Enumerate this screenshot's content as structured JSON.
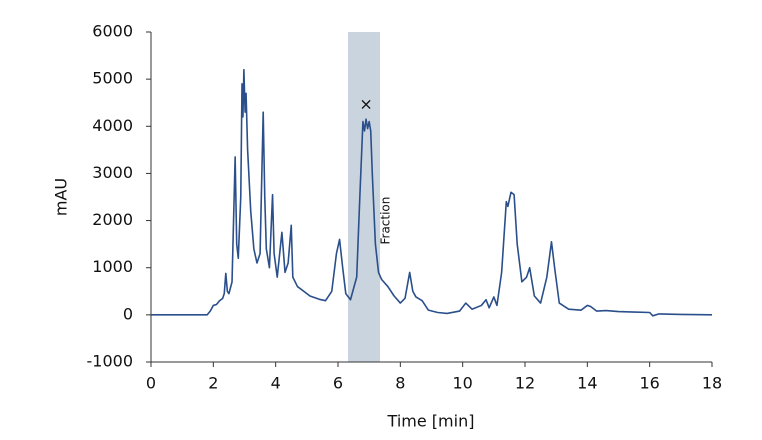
{
  "chart_data": {
    "type": "line",
    "xlabel": "Time [min]",
    "ylabel": "mAU",
    "xlim": [
      0,
      18
    ],
    "xticks": [
      0,
      2,
      4,
      6,
      8,
      10,
      12,
      14,
      16,
      18
    ],
    "ylim": [
      -1000,
      6000
    ],
    "yticks": [
      -1000,
      0,
      1000,
      2000,
      3000,
      4000,
      5000,
      6000
    ],
    "grid": false,
    "span": {
      "label": "Fraction",
      "x": [
        6.32,
        7.35
      ],
      "color": "#c9d4de"
    },
    "annotations": [
      {
        "text": "×",
        "x": 6.9,
        "y": 4450
      }
    ],
    "series": [
      {
        "color": "#2b4f8a",
        "x": [
          0,
          1.8,
          1.9,
          2.0,
          2.1,
          2.2,
          2.3,
          2.35,
          2.4,
          2.45,
          2.5,
          2.6,
          2.7,
          2.75,
          2.8,
          2.88,
          2.92,
          2.95,
          2.98,
          3.02,
          3.05,
          3.1,
          3.2,
          3.3,
          3.4,
          3.5,
          3.6,
          3.65,
          3.7,
          3.8,
          3.9,
          3.95,
          4.05,
          4.2,
          4.3,
          4.4,
          4.5,
          4.55,
          4.7,
          4.9,
          5.1,
          5.4,
          5.6,
          5.8,
          5.95,
          6.05,
          6.15,
          6.25,
          6.4,
          6.6,
          6.7,
          6.8,
          6.85,
          6.9,
          6.95,
          7.0,
          7.05,
          7.1,
          7.2,
          7.3,
          7.4,
          7.6,
          7.8,
          8.0,
          8.15,
          8.3,
          8.4,
          8.5,
          8.7,
          8.9,
          9.2,
          9.5,
          9.9,
          10.1,
          10.3,
          10.6,
          10.75,
          10.85,
          11.0,
          11.1,
          11.25,
          11.4,
          11.45,
          11.55,
          11.65,
          11.75,
          11.9,
          12.05,
          12.15,
          12.3,
          12.5,
          12.7,
          12.85,
          12.95,
          13.1,
          13.4,
          13.8,
          14.0,
          14.1,
          14.3,
          14.6,
          15.0,
          15.5,
          16.0,
          16.1,
          16.3,
          17,
          18
        ],
        "values": [
          0,
          0,
          80,
          200,
          220,
          300,
          350,
          450,
          880,
          500,
          450,
          700,
          3350,
          1500,
          1200,
          2500,
          4900,
          4200,
          5200,
          4300,
          4700,
          3500,
          2200,
          1400,
          1100,
          1300,
          4300,
          2500,
          1400,
          1000,
          2550,
          1300,
          800,
          1750,
          900,
          1100,
          1900,
          800,
          600,
          500,
          400,
          330,
          300,
          500,
          1300,
          1600,
          1000,
          450,
          320,
          800,
          2500,
          4100,
          3900,
          4150,
          3950,
          4100,
          3900,
          3000,
          1500,
          900,
          750,
          600,
          400,
          250,
          350,
          900,
          500,
          380,
          300,
          100,
          50,
          30,
          80,
          250,
          120,
          200,
          320,
          150,
          380,
          200,
          900,
          2400,
          2300,
          2600,
          2550,
          1500,
          700,
          800,
          1000,
          400,
          250,
          800,
          1550,
          1000,
          250,
          120,
          100,
          200,
          180,
          80,
          90,
          70,
          60,
          50,
          -20,
          20,
          10,
          0
        ]
      }
    ]
  }
}
